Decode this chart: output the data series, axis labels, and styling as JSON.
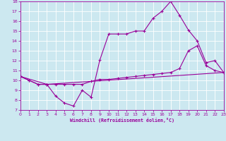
{
  "title": "",
  "xlabel": "Windchill (Refroidissement éolien,°C)",
  "xlim": [
    0,
    23
  ],
  "ylim": [
    7,
    18
  ],
  "yticks": [
    7,
    8,
    9,
    10,
    11,
    12,
    13,
    14,
    15,
    16,
    17,
    18
  ],
  "xticks": [
    0,
    1,
    2,
    3,
    4,
    5,
    6,
    7,
    8,
    9,
    10,
    11,
    12,
    13,
    14,
    15,
    16,
    17,
    18,
    19,
    20,
    21,
    22,
    23
  ],
  "bg_color": "#cce8f0",
  "line_color": "#990099",
  "grid_color": "#ffffff",
  "line1_x": [
    0,
    1,
    2,
    3,
    4,
    5,
    6,
    7,
    8,
    9,
    10,
    11,
    12,
    13,
    14,
    15,
    16,
    17,
    18,
    19,
    20,
    21,
    22,
    23
  ],
  "line1_y": [
    10.4,
    10.0,
    9.6,
    9.6,
    8.4,
    7.7,
    7.4,
    9.0,
    8.3,
    12.1,
    14.7,
    14.7,
    14.7,
    15.0,
    15.0,
    16.3,
    17.0,
    18.0,
    16.6,
    15.1,
    14.0,
    11.8,
    12.0,
    10.8
  ],
  "line2_x": [
    0,
    1,
    2,
    3,
    4,
    5,
    6,
    7,
    8,
    9,
    10,
    11,
    12,
    13,
    14,
    15,
    16,
    17,
    18,
    19,
    20,
    21,
    22,
    23
  ],
  "line2_y": [
    10.4,
    10.0,
    9.6,
    9.6,
    9.6,
    9.6,
    9.6,
    9.6,
    9.9,
    10.1,
    10.1,
    10.2,
    10.3,
    10.4,
    10.5,
    10.6,
    10.7,
    10.8,
    11.2,
    13.0,
    13.5,
    11.5,
    11.0,
    10.8
  ],
  "line3_x": [
    0,
    3,
    23
  ],
  "line3_y": [
    10.4,
    9.6,
    10.8
  ],
  "marker": "+",
  "markersize": 3,
  "linewidth": 0.8
}
